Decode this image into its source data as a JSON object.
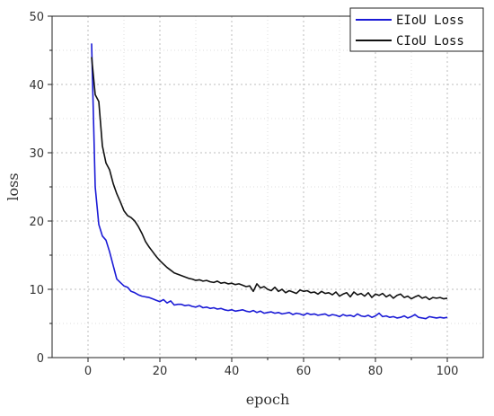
{
  "chart_data": {
    "type": "line",
    "xlabel": "epoch",
    "ylabel": "loss",
    "xlim": [
      -10,
      110
    ],
    "ylim": [
      0,
      50
    ],
    "xticks": [
      0,
      20,
      40,
      60,
      80,
      100
    ],
    "yticks": [
      0,
      10,
      20,
      30,
      40,
      50
    ],
    "grid": true,
    "legend_position": "top-right",
    "series": [
      {
        "name": "EIoU Loss",
        "color": "#1a1ad6",
        "x": [
          1,
          2,
          3,
          4,
          5,
          6,
          7,
          8,
          9,
          10,
          11,
          12,
          13,
          14,
          15,
          16,
          17,
          18,
          19,
          20,
          21,
          22,
          23,
          24,
          25,
          26,
          27,
          28,
          29,
          30,
          31,
          32,
          33,
          34,
          35,
          36,
          37,
          38,
          39,
          40,
          41,
          42,
          43,
          44,
          45,
          46,
          47,
          48,
          49,
          50,
          51,
          52,
          53,
          54,
          55,
          56,
          57,
          58,
          59,
          60,
          61,
          62,
          63,
          64,
          65,
          66,
          67,
          68,
          69,
          70,
          71,
          72,
          73,
          74,
          75,
          76,
          77,
          78,
          79,
          80,
          81,
          82,
          83,
          84,
          85,
          86,
          87,
          88,
          89,
          90,
          91,
          92,
          93,
          94,
          95,
          96,
          97,
          98,
          99,
          100
        ],
        "values": [
          46.0,
          25.0,
          19.5,
          17.8,
          17.2,
          15.5,
          13.5,
          11.5,
          11.0,
          10.5,
          10.3,
          9.7,
          9.5,
          9.2,
          9.0,
          8.9,
          8.8,
          8.6,
          8.4,
          8.2,
          8.5,
          8.0,
          8.3,
          7.7,
          7.8,
          7.8,
          7.6,
          7.7,
          7.5,
          7.4,
          7.6,
          7.3,
          7.4,
          7.2,
          7.3,
          7.1,
          7.2,
          7.0,
          6.9,
          7.0,
          6.8,
          6.9,
          7.0,
          6.8,
          6.7,
          6.9,
          6.6,
          6.8,
          6.5,
          6.6,
          6.7,
          6.5,
          6.6,
          6.4,
          6.5,
          6.6,
          6.3,
          6.5,
          6.4,
          6.2,
          6.5,
          6.3,
          6.4,
          6.2,
          6.3,
          6.4,
          6.1,
          6.3,
          6.2,
          6.0,
          6.3,
          6.1,
          6.2,
          6.0,
          6.4,
          6.1,
          6.0,
          6.2,
          5.9,
          6.1,
          6.5,
          6.0,
          6.1,
          5.9,
          6.0,
          5.8,
          5.9,
          6.1,
          5.8,
          6.0,
          6.3,
          5.9,
          5.8,
          5.7,
          6.0,
          5.9,
          5.8,
          5.9,
          5.8,
          5.9
        ]
      },
      {
        "name": "CIoU Loss",
        "color": "#111111",
        "x": [
          1,
          2,
          3,
          4,
          5,
          6,
          7,
          8,
          9,
          10,
          11,
          12,
          13,
          14,
          15,
          16,
          17,
          18,
          19,
          20,
          21,
          22,
          23,
          24,
          25,
          26,
          27,
          28,
          29,
          30,
          31,
          32,
          33,
          34,
          35,
          36,
          37,
          38,
          39,
          40,
          41,
          42,
          43,
          44,
          45,
          46,
          47,
          48,
          49,
          50,
          51,
          52,
          53,
          54,
          55,
          56,
          57,
          58,
          59,
          60,
          61,
          62,
          63,
          64,
          65,
          66,
          67,
          68,
          69,
          70,
          71,
          72,
          73,
          74,
          75,
          76,
          77,
          78,
          79,
          80,
          81,
          82,
          83,
          84,
          85,
          86,
          87,
          88,
          89,
          90,
          91,
          92,
          93,
          94,
          95,
          96,
          97,
          98,
          99,
          100
        ],
        "values": [
          44.0,
          38.5,
          37.5,
          31.0,
          28.5,
          27.5,
          25.5,
          24.0,
          22.8,
          21.5,
          20.8,
          20.5,
          20.0,
          19.2,
          18.2,
          17.0,
          16.2,
          15.5,
          14.8,
          14.2,
          13.7,
          13.2,
          12.8,
          12.4,
          12.2,
          12.0,
          11.8,
          11.6,
          11.5,
          11.3,
          11.4,
          11.2,
          11.3,
          11.1,
          11.0,
          11.2,
          10.9,
          11.0,
          10.8,
          10.9,
          10.7,
          10.8,
          10.6,
          10.4,
          10.5,
          9.7,
          10.8,
          10.2,
          10.4,
          10.0,
          9.8,
          10.3,
          9.7,
          10.0,
          9.5,
          9.8,
          9.6,
          9.4,
          9.9,
          9.7,
          9.8,
          9.5,
          9.6,
          9.3,
          9.7,
          9.4,
          9.5,
          9.2,
          9.6,
          9.0,
          9.3,
          9.5,
          8.9,
          9.6,
          9.2,
          9.4,
          9.0,
          9.5,
          8.8,
          9.3,
          9.1,
          9.4,
          8.9,
          9.2,
          8.7,
          9.1,
          9.3,
          8.8,
          9.0,
          8.6,
          8.9,
          9.1,
          8.7,
          8.9,
          8.5,
          8.8,
          8.7,
          8.8,
          8.6,
          8.7
        ]
      }
    ]
  }
}
